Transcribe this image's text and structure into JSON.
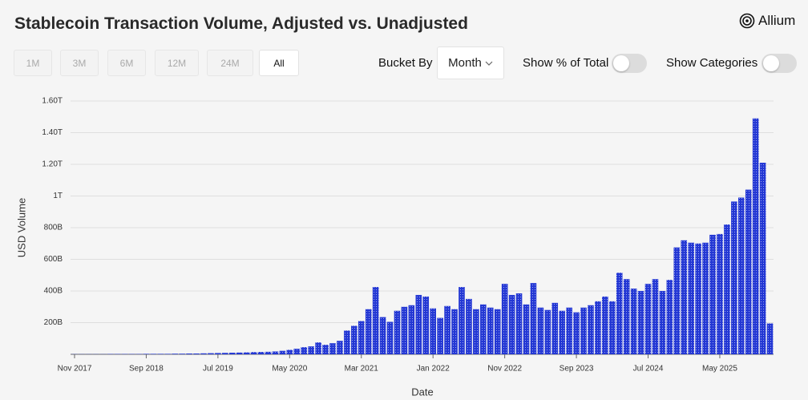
{
  "chart_data": {
    "type": "bar",
    "title": "Stablecoin Transaction Volume, Adjusted vs. Unadjusted",
    "x_label": "Date",
    "y_label": "USD Volume",
    "categories": [
      "Nov 2017",
      null,
      null,
      null,
      null,
      null,
      null,
      null,
      null,
      null,
      "Sep 2018",
      null,
      null,
      null,
      null,
      null,
      null,
      null,
      null,
      null,
      "Jul 2019",
      null,
      null,
      null,
      null,
      null,
      null,
      null,
      null,
      null,
      "May 2020",
      null,
      null,
      null,
      null,
      null,
      null,
      null,
      null,
      null,
      "Mar 2021",
      null,
      null,
      null,
      null,
      null,
      null,
      null,
      null,
      null,
      "Jan 2022",
      null,
      null,
      null,
      null,
      null,
      null,
      null,
      null,
      null,
      "Nov 2022",
      null,
      null,
      null,
      null,
      null,
      null,
      null,
      null,
      null,
      "Sep 2023",
      null,
      null,
      null,
      null,
      null,
      null,
      null,
      null,
      null,
      "Jul 2024",
      null,
      null,
      null,
      null,
      null,
      null,
      null,
      null,
      null,
      "May 2025",
      null,
      null,
      null,
      null,
      null,
      null,
      null
    ],
    "values": [
      1,
      1,
      1,
      1,
      1,
      2,
      2,
      2,
      2,
      2,
      3,
      3,
      3,
      3,
      4,
      4,
      5,
      5,
      6,
      7,
      8,
      9,
      10,
      11,
      12,
      14,
      15,
      16,
      18,
      22,
      28,
      35,
      45,
      50,
      75,
      60,
      70,
      85,
      150,
      180,
      210,
      285,
      425,
      235,
      205,
      275,
      300,
      310,
      375,
      365,
      290,
      230,
      305,
      285,
      425,
      350,
      285,
      315,
      295,
      285,
      445,
      375,
      385,
      315,
      450,
      295,
      280,
      325,
      275,
      295,
      265,
      295,
      310,
      335,
      365,
      335,
      515,
      475,
      415,
      400,
      445,
      475,
      400,
      470,
      675,
      720,
      705,
      700,
      705,
      755,
      760,
      820,
      965,
      990,
      1040,
      1490,
      1210,
      195
    ],
    "color": "#2438d4",
    "ylim": [
      0,
      1600
    ],
    "yticks": [
      {
        "value": 200,
        "label": "200B"
      },
      {
        "value": 400,
        "label": "400B"
      },
      {
        "value": 600,
        "label": "600B"
      },
      {
        "value": 800,
        "label": "800B"
      },
      {
        "value": 1000,
        "label": "1T"
      },
      {
        "value": 1200,
        "label": "1.20T"
      },
      {
        "value": 1400,
        "label": "1.40T"
      },
      {
        "value": 1600,
        "label": "1.60T"
      }
    ],
    "grid": true
  },
  "header": {
    "logo": "Allium"
  },
  "controls": {
    "ranges": [
      "1M",
      "3M",
      "6M",
      "12M",
      "24M",
      "All"
    ],
    "selected_range": "All",
    "bucket_label": "Bucket By",
    "bucket_value": "Month",
    "toggle_percent": "Show % of Total",
    "toggle_categories": "Show Categories"
  }
}
